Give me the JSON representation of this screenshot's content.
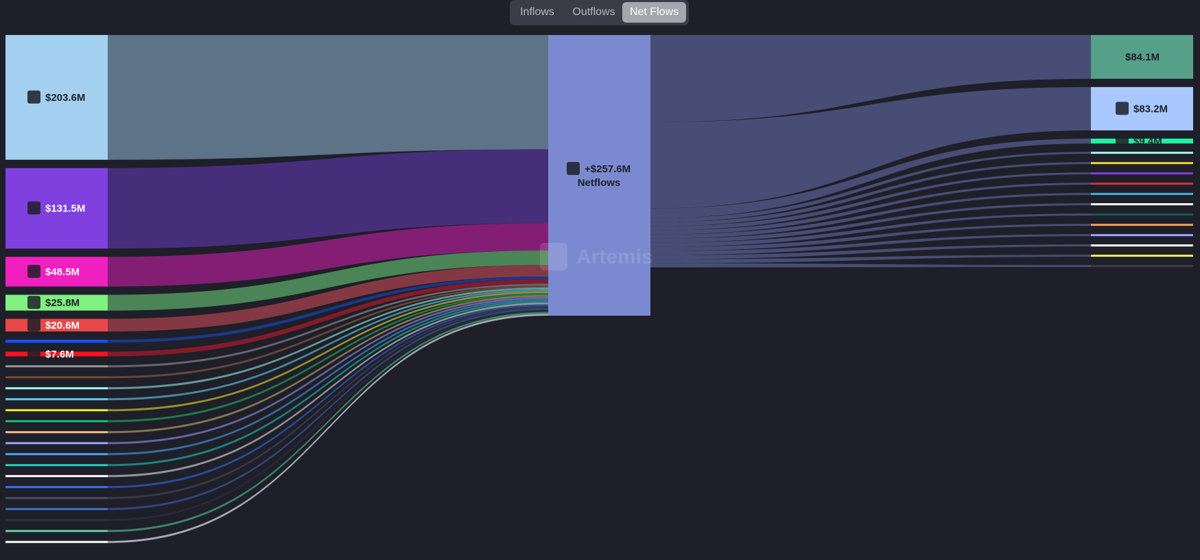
{
  "tabs": [
    {
      "label": "Inflows",
      "active": false
    },
    {
      "label": "Outflows",
      "active": false
    },
    {
      "label": "Net Flows",
      "active": true
    }
  ],
  "watermark": "Artemis",
  "center": {
    "value_label": "+$257.6M",
    "sub_label": "Netflows",
    "color": "#7b8ad0",
    "icon": "ethereum-icon"
  },
  "chart_data": {
    "type": "sankey",
    "sources": [
      {
        "label": "$203.6M",
        "value": 203.6,
        "color": "#a3d0f0",
        "link_color": "#61788c",
        "icon": "arbitrum-icon"
      },
      {
        "label": "$131.5M",
        "value": 131.5,
        "color": "#8040e0",
        "link_color": "#4a2f80",
        "icon": "polygon-icon"
      },
      {
        "label": "$48.5M",
        "value": 48.5,
        "color": "#f020c0",
        "link_color": "#8a1f78",
        "icon": "sparkle-icon"
      },
      {
        "label": "$25.8M",
        "value": 25.8,
        "color": "#80f080",
        "link_color": "#4e8a58",
        "icon": "triangle-icon"
      },
      {
        "label": "$20.6M",
        "value": 20.6,
        "color": "#e84848",
        "link_color": "#8a3a44",
        "icon": "avalanche-icon"
      },
      {
        "label": "",
        "value": 5.0,
        "color": "#1050ff",
        "link_color": "#1a3a8e",
        "icon": ""
      },
      {
        "label": "$7.6M",
        "value": 7.6,
        "color": "#ff1020",
        "link_color": "#8a1a2a",
        "icon": "optimism-icon"
      },
      {
        "label": "",
        "value": 1.0,
        "color": "#9a9a9a",
        "link_color": "#6a6a70",
        "icon": ""
      },
      {
        "label": "",
        "value": 1.0,
        "color": "#7a4a30",
        "link_color": "#6a4a3a",
        "icon": ""
      },
      {
        "label": "",
        "value": 1.0,
        "color": "#a0fff0",
        "link_color": "#6aa0a0",
        "icon": ""
      },
      {
        "label": "",
        "value": 1.0,
        "color": "#60d0f0",
        "link_color": "#4a90a8",
        "icon": ""
      },
      {
        "label": "",
        "value": 1.0,
        "color": "#f0f020",
        "link_color": "#9a9a30",
        "icon": ""
      },
      {
        "label": "",
        "value": 1.0,
        "color": "#10c070",
        "link_color": "#208050",
        "icon": ""
      },
      {
        "label": "",
        "value": 1.0,
        "color": "#f0c080",
        "link_color": "#8a7a5a",
        "icon": ""
      },
      {
        "label": "",
        "value": 1.0,
        "color": "#a0a0ff",
        "link_color": "#6a6aa8",
        "icon": ""
      },
      {
        "label": "",
        "value": 1.0,
        "color": "#50a0f0",
        "link_color": "#3a70a8",
        "icon": ""
      },
      {
        "label": "",
        "value": 1.0,
        "color": "#20d0c0",
        "link_color": "#208a80",
        "icon": ""
      },
      {
        "label": "",
        "value": 1.0,
        "color": "#ffffff",
        "link_color": "#9a9aa0",
        "icon": ""
      },
      {
        "label": "",
        "value": 1.0,
        "color": "#3a70f0",
        "link_color": "#2a50a0",
        "icon": ""
      },
      {
        "label": "",
        "value": 1.0,
        "color": "#4a4a60",
        "link_color": "#3a3a48",
        "icon": ""
      },
      {
        "label": "",
        "value": 1.0,
        "color": "#4070c0",
        "link_color": "#304a80",
        "icon": ""
      },
      {
        "label": "",
        "value": 1.0,
        "color": "#303040",
        "link_color": "#2a2a38",
        "icon": ""
      },
      {
        "label": "",
        "value": 1.0,
        "color": "#60d0a0",
        "link_color": "#408a70",
        "icon": ""
      },
      {
        "label": "",
        "value": 1.0,
        "color": "#ffffff",
        "link_color": "#b0b0b8",
        "icon": ""
      }
    ],
    "targets": [
      {
        "label": "$84.1M",
        "value": 84.1,
        "color": "#56a08a",
        "icon": ""
      },
      {
        "label": "$83.2M",
        "value": 83.2,
        "color": "#a8c8ff",
        "icon": "wormhole-icon"
      },
      {
        "label": "$9.4M",
        "value": 9.4,
        "color": "#20f0a0",
        "icon": "solana-icon"
      },
      {
        "label": "",
        "value": 1.0,
        "color": "#a0fff0",
        "icon": ""
      },
      {
        "label": "",
        "value": 1.0,
        "color": "#f0d030",
        "icon": ""
      },
      {
        "label": "",
        "value": 1.0,
        "color": "#8040e0",
        "icon": ""
      },
      {
        "label": "",
        "value": 1.0,
        "color": "#d03040",
        "icon": ""
      },
      {
        "label": "",
        "value": 1.0,
        "color": "#40b0e0",
        "icon": ""
      },
      {
        "label": "",
        "value": 1.0,
        "color": "#ffffff",
        "icon": ""
      },
      {
        "label": "",
        "value": 1.0,
        "color": "#106050",
        "icon": ""
      },
      {
        "label": "",
        "value": 1.0,
        "color": "#f0a050",
        "icon": ""
      },
      {
        "label": "",
        "value": 1.0,
        "color": "#a0a0ff",
        "icon": ""
      },
      {
        "label": "",
        "value": 1.0,
        "color": "#ffffff",
        "icon": ""
      },
      {
        "label": "",
        "value": 1.0,
        "color": "#f0f060",
        "icon": ""
      },
      {
        "label": "",
        "value": 1.0,
        "color": "#3a3c48",
        "icon": ""
      }
    ],
    "outflow_link_color": "#4a5078"
  }
}
